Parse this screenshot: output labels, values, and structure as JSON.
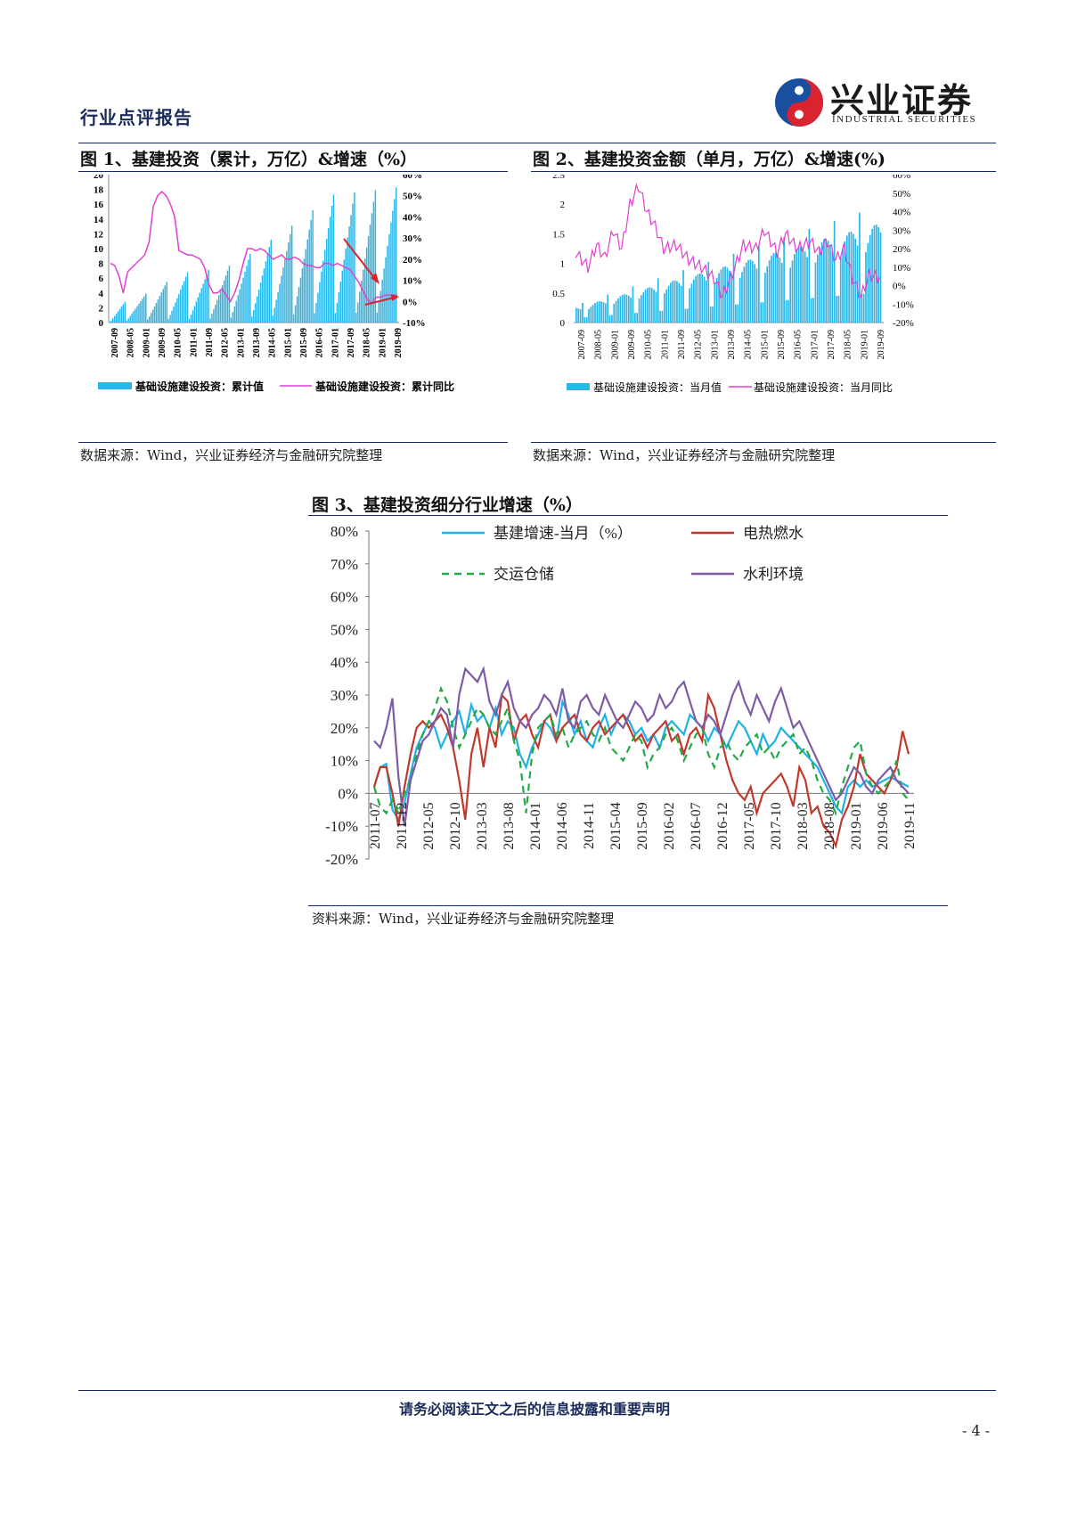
{
  "header": {
    "title": "行业点评报告",
    "logo_cn": "兴业证券",
    "logo_en": "INDUSTRIAL SECURITIES"
  },
  "figure1": {
    "title": "图 1、基建投资（累计，万亿）&增速（%）",
    "source": "数据来源：Wind，兴业证券经济与金融研究院整理",
    "chart_data": {
      "type": "bar+line",
      "left_ylim": [
        0,
        20
      ],
      "left_ticks": [
        "20",
        "18",
        "16",
        "14",
        "12",
        "10",
        "8",
        "6",
        "4",
        "2",
        "0"
      ],
      "right_ylim": [
        -10,
        60
      ],
      "right_ticks": [
        "60%",
        "50%",
        "40%",
        "30%",
        "20%",
        "10%",
        "0%",
        "-10%"
      ],
      "x_ticks": [
        "2007-09",
        "2008-05",
        "2009-01",
        "2009-09",
        "2010-05",
        "2011-01",
        "2011-09",
        "2012-05",
        "2013-01",
        "2013-09",
        "2014-05",
        "2015-01",
        "2015-09",
        "2016-05",
        "2017-01",
        "2017-09",
        "2018-05",
        "2019-01",
        "2019-09"
      ],
      "series": [
        {
          "name": "基础设施建设投资：累计值",
          "kind": "bar",
          "color": "#29b6e8",
          "year_end_values": [
            2.8,
            3.9,
            5.5,
            6.8,
            7.1,
            7.7,
            9.3,
            11.2,
            13.1,
            15.2,
            17.3,
            17.6,
            17.9,
            18.3
          ]
        },
        {
          "name": "基础设施建设投资：累计同比",
          "kind": "line",
          "color": "#e040d0",
          "values": [
            18,
            17,
            12,
            4,
            14,
            16,
            18,
            20,
            22,
            28,
            45,
            50,
            52,
            50,
            46,
            40,
            24,
            23,
            22,
            22,
            21,
            20,
            16,
            8,
            4,
            4,
            6,
            3,
            0,
            4,
            10,
            18,
            25,
            25,
            24,
            25,
            24,
            22,
            20,
            21,
            22,
            20,
            20,
            21,
            20,
            18,
            17,
            17,
            16,
            16,
            18,
            18,
            17,
            18,
            17,
            16,
            15,
            12,
            9,
            5,
            1,
            -1,
            2,
            2,
            3,
            3,
            3,
            3
          ]
        }
      ]
    }
  },
  "figure2": {
    "title": "图 2、基建投资金额（单月，万亿）&增速(%)",
    "source": "数据来源：Wind，兴业证券经济与金融研究院整理",
    "chart_data": {
      "type": "bar+line",
      "left_ylim": [
        0,
        2.5
      ],
      "left_ticks": [
        "2.5",
        "2",
        "1.5",
        "1",
        "0.5",
        "0"
      ],
      "right_ylim": [
        -20,
        60
      ],
      "right_ticks": [
        "60%",
        "50%",
        "40%",
        "30%",
        "20%",
        "10%",
        "0%",
        "-10%",
        "-20%"
      ],
      "x_ticks": [
        "2007-09",
        "2008-05",
        "2009-01",
        "2009-09",
        "2010-05",
        "2011-01",
        "2011-09",
        "2012-05",
        "2013-01",
        "2013-09",
        "2014-05",
        "2015-01",
        "2015-09",
        "2016-05",
        "2017-01",
        "2017-09",
        "2018-05",
        "2019-01",
        "2019-09"
      ],
      "series": [
        {
          "name": "基础设施建设投资：当月值",
          "kind": "bar",
          "color": "#29b6e8"
        },
        {
          "name": "基础设施建设投资：当月同比",
          "kind": "line",
          "color": "#e040d0"
        }
      ]
    }
  },
  "figure3": {
    "title": "图 3、基建投资细分行业增速（%）",
    "source": "资料来源：Wind，兴业证券经济与金融研究院整理",
    "chart_data": {
      "type": "line",
      "ylim": [
        -20,
        80
      ],
      "y_ticks": [
        "80%",
        "70%",
        "60%",
        "50%",
        "40%",
        "30%",
        "20%",
        "10%",
        "0%",
        "-10%",
        "-20%"
      ],
      "x_ticks": [
        "2011-07",
        "2011-12",
        "2012-05",
        "2012-10",
        "2013-03",
        "2013-08",
        "2014-01",
        "2014-06",
        "2014-11",
        "2015-04",
        "2015-09",
        "2016-02",
        "2016-07",
        "2016-12",
        "2017-05",
        "2017-10",
        "2018-03",
        "2018-08",
        "2019-01",
        "2019-06",
        "2019-11"
      ],
      "series": [
        {
          "name": "基建增速-当月（%）",
          "color": "#1fb1e6",
          "dash": "",
          "values": [
            2,
            8,
            9,
            -5,
            -8,
            -3,
            6,
            14,
            18,
            22,
            20,
            14,
            18,
            22,
            25,
            18,
            27,
            22,
            24,
            20,
            26,
            18,
            22,
            20,
            12,
            8,
            14,
            18,
            22,
            20,
            16,
            28,
            24,
            18,
            22,
            16,
            14,
            20,
            24,
            18,
            22,
            24,
            22,
            18,
            20,
            16,
            18,
            14,
            20,
            22,
            20,
            18,
            24,
            22,
            20,
            16,
            20,
            18,
            14,
            18,
            22,
            20,
            16,
            12,
            18,
            14,
            16,
            20,
            18,
            16,
            14,
            12,
            10,
            8,
            4,
            0,
            -4,
            -6,
            2,
            4,
            2,
            4,
            2,
            3,
            4,
            5,
            4,
            3,
            2
          ]
        },
        {
          "name": "电热燃水",
          "color": "#c0392b",
          "dash": "",
          "values": [
            2,
            8,
            8,
            0,
            -10,
            2,
            12,
            20,
            22,
            20,
            22,
            24,
            20,
            14,
            4,
            -8,
            12,
            20,
            8,
            20,
            14,
            30,
            28,
            16,
            22,
            24,
            18,
            14,
            22,
            24,
            16,
            20,
            22,
            24,
            18,
            16,
            20,
            22,
            18,
            20,
            22,
            24,
            20,
            16,
            18,
            14,
            18,
            20,
            22,
            16,
            18,
            12,
            18,
            20,
            16,
            30,
            26,
            18,
            10,
            4,
            0,
            -2,
            2,
            -6,
            0,
            2,
            4,
            6,
            2,
            -4,
            8,
            4,
            -6,
            -4,
            -10,
            -12,
            -16,
            -8,
            -4,
            2,
            12,
            6,
            4,
            2,
            0,
            4,
            8,
            19,
            12
          ]
        },
        {
          "name": "交运仓储",
          "color": "#22aa44",
          "dash": "8,6",
          "values": [
            2,
            -4,
            -6,
            -2,
            -6,
            0,
            4,
            12,
            18,
            22,
            26,
            32,
            28,
            20,
            14,
            18,
            22,
            26,
            24,
            20,
            18,
            22,
            26,
            16,
            10,
            -6,
            12,
            20,
            22,
            24,
            18,
            20,
            14,
            18,
            20,
            22,
            18,
            16,
            20,
            14,
            12,
            10,
            14,
            18,
            16,
            8,
            12,
            14,
            18,
            20,
            16,
            10,
            14,
            18,
            20,
            12,
            8,
            14,
            16,
            12,
            10,
            14,
            16,
            18,
            12,
            14,
            10,
            14,
            16,
            18,
            12,
            14,
            10,
            4,
            0,
            -2,
            -6,
            2,
            8,
            14,
            16,
            6,
            2,
            0,
            2,
            4,
            10,
            0,
            -2
          ]
        },
        {
          "name": "水利环境",
          "color": "#7e5ba6",
          "dash": "",
          "values": [
            16,
            14,
            20,
            29,
            5,
            -10,
            4,
            10,
            16,
            18,
            22,
            26,
            24,
            14,
            30,
            38,
            36,
            34,
            38,
            28,
            24,
            30,
            34,
            26,
            22,
            20,
            24,
            26,
            30,
            28,
            24,
            32,
            22,
            20,
            28,
            30,
            26,
            24,
            30,
            26,
            22,
            20,
            24,
            28,
            26,
            22,
            24,
            30,
            26,
            28,
            32,
            34,
            28,
            22,
            20,
            24,
            22,
            18,
            24,
            30,
            34,
            28,
            24,
            30,
            26,
            22,
            28,
            32,
            26,
            20,
            22,
            18,
            14,
            10,
            6,
            2,
            -2,
            0,
            4,
            8,
            6,
            2,
            0,
            4,
            6,
            8,
            4,
            2,
            0
          ]
        }
      ]
    }
  },
  "footer": {
    "disclaimer": "请务必阅读正文之后的信息披露和重要声明",
    "page": "- 4 -"
  }
}
